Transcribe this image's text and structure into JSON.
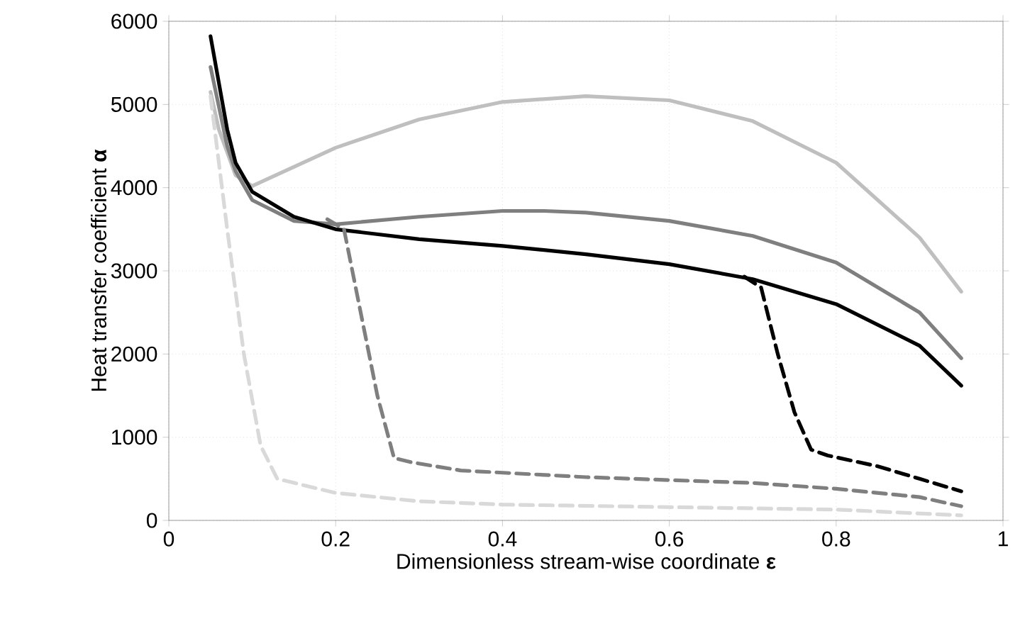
{
  "chart_data": {
    "type": "line",
    "xlabel": "Dimensionless stream-wise coordinate **ε**",
    "ylabel": "Heat transfer coefficient **α**",
    "xlim": [
      0,
      1
    ],
    "ylim": [
      0,
      6000
    ],
    "xticks": [
      0,
      0.2,
      0.4,
      0.6,
      0.8,
      1
    ],
    "yticks": [
      0,
      1000,
      2000,
      3000,
      4000,
      5000,
      6000
    ],
    "grid": true,
    "marker": "none",
    "series": [
      {
        "color": "#bfbfbf",
        "line_style": "solid",
        "x": [
          0.05,
          0.06,
          0.08,
          0.1,
          0.15,
          0.2,
          0.3,
          0.4,
          0.5,
          0.6,
          0.7,
          0.8,
          0.9,
          0.95
        ],
        "values": [
          5150,
          4700,
          4150,
          4020,
          4250,
          4480,
          4820,
          5030,
          5100,
          5050,
          4800,
          4300,
          3400,
          2750
        ]
      },
      {
        "color": "#7f7f7f",
        "line_style": "solid",
        "x": [
          0.05,
          0.07,
          0.08,
          0.1,
          0.15,
          0.2,
          0.3,
          0.4,
          0.45,
          0.5,
          0.6,
          0.7,
          0.8,
          0.9,
          0.95
        ],
        "values": [
          5450,
          4500,
          4200,
          3850,
          3600,
          3560,
          3650,
          3720,
          3720,
          3700,
          3600,
          3420,
          3100,
          2500,
          1950
        ]
      },
      {
        "color": "#000000",
        "line_style": "solid",
        "x": [
          0.05,
          0.07,
          0.08,
          0.1,
          0.15,
          0.2,
          0.3,
          0.4,
          0.5,
          0.6,
          0.7,
          0.8,
          0.9,
          0.95
        ],
        "values": [
          5820,
          4700,
          4300,
          3950,
          3650,
          3500,
          3380,
          3300,
          3200,
          3080,
          2900,
          2600,
          2100,
          1620
        ]
      },
      {
        "color": "#d9d9d9",
        "line_style": "dashed",
        "x": [
          0.05,
          0.07,
          0.09,
          0.11,
          0.13,
          0.2,
          0.3,
          0.4,
          0.6,
          0.8,
          0.95
        ],
        "values": [
          5100,
          3500,
          2000,
          900,
          500,
          330,
          230,
          190,
          160,
          130,
          60
        ]
      },
      {
        "color": "#7f7f7f",
        "line_style": "dashed",
        "x": [
          0.19,
          0.21,
          0.23,
          0.25,
          0.27,
          0.29,
          0.35,
          0.5,
          0.7,
          0.8,
          0.9,
          0.95
        ],
        "values": [
          3620,
          3500,
          2500,
          1500,
          750,
          700,
          600,
          520,
          450,
          380,
          280,
          170
        ]
      },
      {
        "color": "#000000",
        "line_style": "dashed",
        "x": [
          0.69,
          0.71,
          0.73,
          0.75,
          0.77,
          0.79,
          0.85,
          0.9,
          0.95
        ],
        "values": [
          2930,
          2800,
          2000,
          1300,
          850,
          780,
          650,
          500,
          350
        ]
      }
    ]
  }
}
